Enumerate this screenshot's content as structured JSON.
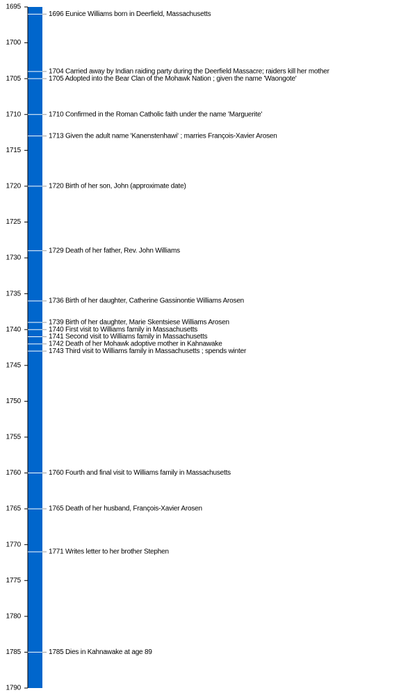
{
  "chart_data": {
    "type": "timeline",
    "color": "#0066cc",
    "ylim": [
      1695,
      1790
    ],
    "yticks": [
      1695,
      1700,
      1705,
      1710,
      1715,
      1720,
      1725,
      1730,
      1735,
      1740,
      1745,
      1750,
      1755,
      1760,
      1765,
      1770,
      1775,
      1780,
      1785,
      1790
    ],
    "values": [
      1696,
      1704,
      1705,
      1710,
      1713,
      1720,
      1729,
      1736,
      1739,
      1740,
      1741,
      1742,
      1743,
      1760,
      1765,
      1771,
      1785
    ],
    "categories": [
      "1696 Eunice Williams born in Deerfield, Massachusetts",
      "1704 Carried away by Indian raiding party during the Deerfield Massacre; raiders kill her mother",
      "1705 Adopted into the Bear Clan of the Mohawk Nation ; given the name 'Waongote'",
      "1710 Confirmed in the Roman Catholic faith under the name 'Marguerite'",
      "1713 Given the adult name 'Kanenstenhawi' ; marries François-Xavier Arosen",
      "1720 Birth of her son, John (approximate date)",
      "1729 Death of her father, Rev. John Williams",
      "1736 Birth of her daughter, Catherine Gassinontie Williams Arosen",
      "1739 Birth of her daughter, Marie Skentsiese Williams Arosen",
      "1740 First visit to Williams family in Massachusetts",
      "1741 Second visit to Williams family in Massachusetts",
      "1742 Death of her Mohawk adoptive mother in Kahnawake",
      "1743 Third visit to Williams family in Massachusetts ; spends winter",
      "1760 Fourth and final visit to Williams family in Massachusetts",
      "1765 Death of her husband, François-Xavier Arosen",
      "1771 Writes letter to her brother Stephen",
      "1785 Dies in Kahnawake at age 89"
    ]
  }
}
